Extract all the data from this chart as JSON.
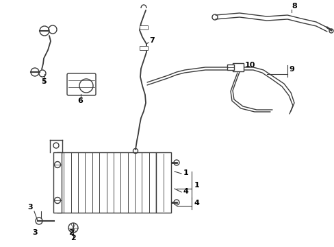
{
  "bg_color": "#ffffff",
  "line_color": "#3a3a3a",
  "label_color": "#000000",
  "figsize": [
    4.89,
    3.6
  ],
  "dpi": 100
}
